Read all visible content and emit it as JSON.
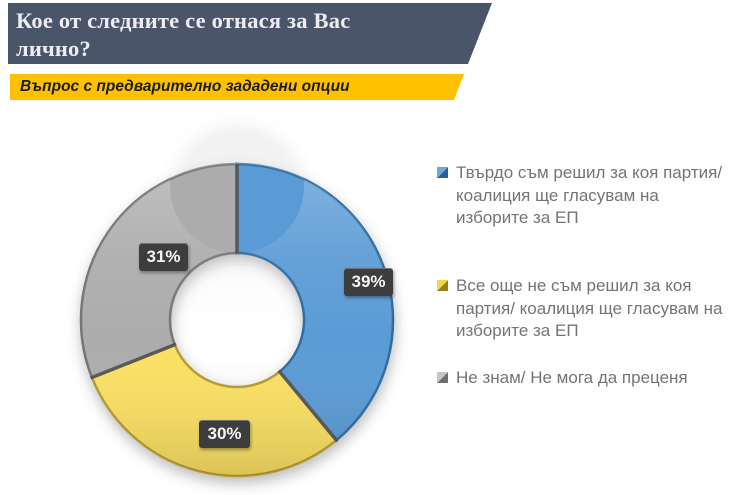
{
  "header": {
    "title": "Кое от следните се отнася за Вас лично?",
    "subtitle": "Въпрос с предварително зададени опции",
    "title_bg": "#4B5569",
    "subtitle_bg": "#FFC000"
  },
  "chart_data": {
    "type": "pie",
    "subtype": "donut",
    "title": "Кое от следните се отнася за Вас лично?",
    "unit": "%",
    "direction": "clockwise",
    "start_angle_deg": 0,
    "hole_ratio": 0.43,
    "legend_position": "right",
    "categories": [
      "Твърдо съм решил за коя партия/ коалиция ще гласувам на изборите за ЕП",
      "Все още не съм решил за коя партия/ коалиция ще гласувам на изборите за ЕП",
      "Не знам/ Не мога да преценя"
    ],
    "values": [
      39,
      30,
      31
    ],
    "slices": [
      {
        "name": "decided",
        "label": "39%",
        "value": 39,
        "color": "#5B9BD5",
        "edge": "#2E6DA0"
      },
      {
        "name": "undecided",
        "label": "30%",
        "value": 30,
        "color": "#FBE063",
        "edge": "#B49B32"
      },
      {
        "name": "dont-know",
        "label": "31%",
        "value": 31,
        "color": "#ACACAC",
        "edge": "#757575"
      }
    ],
    "separator_color": "#575757",
    "data_label_bg": "#3D3D3D",
    "data_label_color": "#F5F5F5"
  },
  "legend": {
    "items": [
      {
        "label": "Твърдо съм решил за коя партия/ коалиция ще гласувам на изборите за ЕП",
        "light": "#6FA8DC",
        "dark": "#2D5E8E"
      },
      {
        "label": "Все още не съм решил за коя партия/ коалиция ще гласувам на изборите за ЕП",
        "light": "#F0D848",
        "dark": "#97801C"
      },
      {
        "label": "Не знам/ Не мога да преценя",
        "light": "#C6C6C6",
        "dark": "#6E6E6E"
      }
    ]
  }
}
